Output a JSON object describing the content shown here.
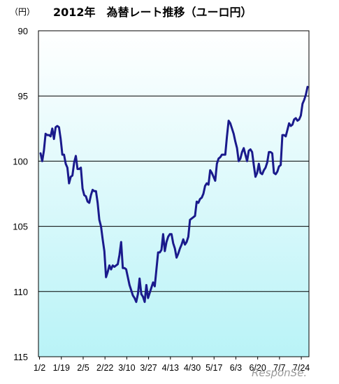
{
  "unit_label": "（円）",
  "chart_data": {
    "type": "line",
    "title": "2012年　為替レート推移（ユーロ円）",
    "ylabel": "（円）",
    "xlabel": "",
    "y_axis_inverted": true,
    "ylim": [
      90,
      115
    ],
    "yticks": [
      90,
      95,
      100,
      105,
      110,
      115
    ],
    "grid": true,
    "legend": "none",
    "x_tick_labels": [
      "1/2",
      "1/19",
      "2/5",
      "2/22",
      "3/10",
      "3/27",
      "4/13",
      "4/30",
      "5/17",
      "6/3",
      "6/20",
      "7/7",
      "7/24"
    ],
    "series": [
      {
        "color": "#1a1a8c",
        "values": [
          99.4,
          100.0,
          99.2,
          97.9,
          98.0,
          98.0,
          98.1,
          97.5,
          98.3,
          97.4,
          97.3,
          97.4,
          98.3,
          99.5,
          99.5,
          100.2,
          100.5,
          101.7,
          101.2,
          101.1,
          100.1,
          99.6,
          100.6,
          100.6,
          100.5,
          102.1,
          102.6,
          102.7,
          103.1,
          103.2,
          102.6,
          102.2,
          102.3,
          102.3,
          103.2,
          104.5,
          105.0,
          106.0,
          106.9,
          108.9,
          108.5,
          108.0,
          108.3,
          108.0,
          108.1,
          108.0,
          107.9,
          107.2,
          106.2,
          108.2,
          108.2,
          108.3,
          108.9,
          109.5,
          109.9,
          110.3,
          110.5,
          110.8,
          110.2,
          109.0,
          110.2,
          110.4,
          110.8,
          109.5,
          110.5,
          110.1,
          109.7,
          109.3,
          109.6,
          108.3,
          107.0,
          107.0,
          106.8,
          105.6,
          106.9,
          106.2,
          105.8,
          105.6,
          105.6,
          106.3,
          106.7,
          107.4,
          107.1,
          106.7,
          106.4,
          106.0,
          106.4,
          106.2,
          105.8,
          104.5,
          104.4,
          104.3,
          104.2,
          103.1,
          103.2,
          102.9,
          102.8,
          102.5,
          101.9,
          101.7,
          101.8,
          100.7,
          100.9,
          101.2,
          101.5,
          100.2,
          99.8,
          99.7,
          99.5,
          99.5,
          99.5,
          98.1,
          96.9,
          97.1,
          97.5,
          97.9,
          98.5,
          99.0,
          100.0,
          99.8,
          99.3,
          99.0,
          99.5,
          100.0,
          99.2,
          99.1,
          99.3,
          100.3,
          101.2,
          100.9,
          100.2,
          100.9,
          101.0,
          100.7,
          100.5,
          100.1,
          99.3,
          99.3,
          99.4,
          100.9,
          101.0,
          100.8,
          100.4,
          100.3,
          98.0,
          98.0,
          98.1,
          97.6,
          97.1,
          97.3,
          97.2,
          96.8,
          96.7,
          96.9,
          96.8,
          96.5,
          95.6,
          95.3,
          94.9,
          94.3
        ]
      }
    ],
    "watermark": "ResponSe."
  }
}
